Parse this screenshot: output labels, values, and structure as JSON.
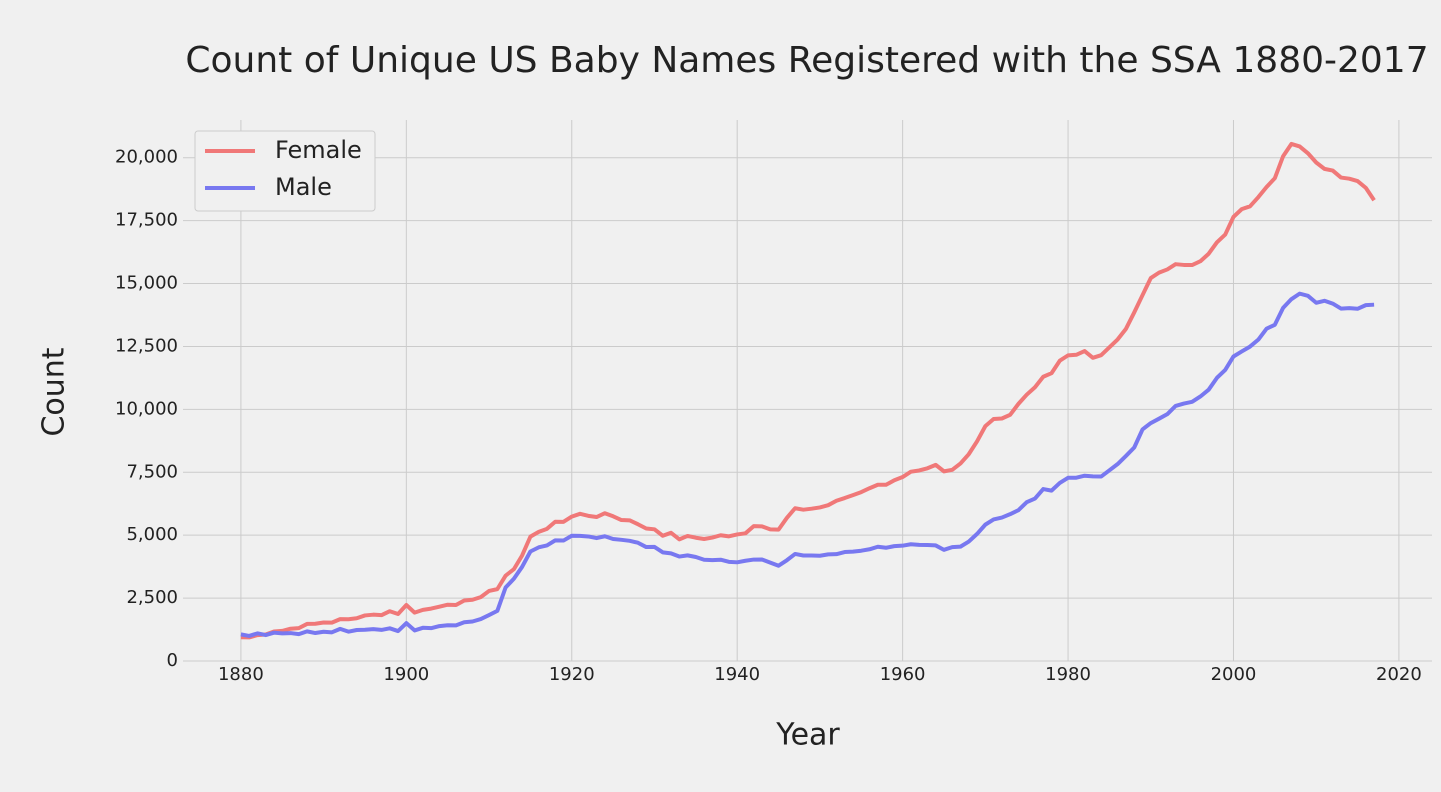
{
  "chart_data": {
    "type": "line",
    "title": "Count of Unique US Baby Names Registered with the SSA 1880-2017",
    "x_label": "Year",
    "y_label": "Count",
    "x": [
      1880,
      1881,
      1882,
      1883,
      1884,
      1885,
      1886,
      1887,
      1888,
      1889,
      1890,
      1891,
      1892,
      1893,
      1894,
      1895,
      1896,
      1897,
      1898,
      1899,
      1900,
      1901,
      1902,
      1903,
      1904,
      1905,
      1906,
      1907,
      1908,
      1909,
      1910,
      1911,
      1912,
      1913,
      1914,
      1915,
      1916,
      1917,
      1918,
      1919,
      1920,
      1921,
      1922,
      1923,
      1924,
      1925,
      1926,
      1927,
      1928,
      1929,
      1930,
      1931,
      1932,
      1933,
      1934,
      1935,
      1936,
      1937,
      1938,
      1939,
      1940,
      1941,
      1942,
      1943,
      1944,
      1945,
      1946,
      1947,
      1948,
      1949,
      1950,
      1951,
      1952,
      1953,
      1954,
      1955,
      1956,
      1957,
      1958,
      1959,
      1960,
      1961,
      1962,
      1963,
      1964,
      1965,
      1966,
      1967,
      1968,
      1969,
      1970,
      1971,
      1972,
      1973,
      1974,
      1975,
      1976,
      1977,
      1978,
      1979,
      1980,
      1981,
      1982,
      1983,
      1984,
      1985,
      1986,
      1987,
      1988,
      1989,
      1990,
      1991,
      1992,
      1993,
      1994,
      1995,
      1996,
      1997,
      1998,
      1999,
      2000,
      2001,
      2002,
      2003,
      2004,
      2005,
      2006,
      2007,
      2008,
      2009,
      2010,
      2011,
      2012,
      2013,
      2014,
      2015,
      2016,
      2017
    ],
    "series": [
      {
        "name": "Female",
        "color": "#f07878",
        "values": [
          942,
          938,
          1028,
          1054,
          1172,
          1197,
          1282,
          1306,
          1474,
          1479,
          1529,
          1525,
          1665,
          1661,
          1698,
          1811,
          1841,
          1822,
          1978,
          1869,
          2225,
          1923,
          2032,
          2082,
          2159,
          2238,
          2226,
          2406,
          2433,
          2540,
          2785,
          2856,
          3392,
          3647,
          4194,
          4943,
          5133,
          5253,
          5534,
          5529,
          5738,
          5850,
          5769,
          5722,
          5873,
          5751,
          5601,
          5590,
          5435,
          5265,
          5233,
          4977,
          5094,
          4834,
          4970,
          4899,
          4849,
          4906,
          4998,
          4954,
          5030,
          5074,
          5360,
          5349,
          5230,
          5221,
          5686,
          6071,
          6013,
          6053,
          6103,
          6192,
          6368,
          6476,
          6592,
          6713,
          6866,
          7003,
          7003,
          7185,
          7311,
          7524,
          7571,
          7659,
          7794,
          7536,
          7598,
          7850,
          8221,
          8731,
          9334,
          9616,
          9637,
          9785,
          10218,
          10584,
          10879,
          11297,
          11437,
          11934,
          12146,
          12169,
          12318,
          12050,
          12154,
          12468,
          12781,
          13201,
          13852,
          14538,
          15217,
          15435,
          15561,
          15770,
          15740,
          15737,
          15887,
          16186,
          16639,
          16946,
          17651,
          17957,
          18069,
          18433,
          18836,
          19188,
          20060,
          20548,
          20449,
          20178,
          19811,
          19558,
          19490,
          19212,
          19167,
          19074,
          18803,
          18309
        ]
      },
      {
        "name": "Male",
        "color": "#7878f0",
        "values": [
          1058,
          997,
          1099,
          1030,
          1125,
          1097,
          1110,
          1067,
          1177,
          1111,
          1161,
          1139,
          1277,
          1166,
          1232,
          1242,
          1266,
          1235,
          1299,
          1189,
          1505,
          1215,
          1320,
          1305,
          1387,
          1419,
          1415,
          1541,
          1570,
          1666,
          1825,
          1991,
          2920,
          3270,
          3743,
          4352,
          4516,
          4591,
          4794,
          4787,
          4978,
          4972,
          4949,
          4884,
          4958,
          4849,
          4816,
          4776,
          4701,
          4528,
          4534,
          4318,
          4277,
          4151,
          4198,
          4133,
          4023,
          4010,
          4025,
          3941,
          3922,
          3984,
          4031,
          4035,
          3911,
          3786,
          4003,
          4254,
          4192,
          4191,
          4184,
          4237,
          4245,
          4330,
          4347,
          4383,
          4440,
          4541,
          4500,
          4565,
          4583,
          4640,
          4614,
          4609,
          4593,
          4418,
          4527,
          4546,
          4747,
          5051,
          5420,
          5625,
          5700,
          5836,
          5994,
          6311,
          6456,
          6834,
          6770,
          7075,
          7280,
          7285,
          7363,
          7337,
          7330,
          7579,
          7828,
          8149,
          8485,
          9202,
          9455,
          9630,
          9810,
          10137,
          10230,
          10299,
          10512,
          10782,
          11253,
          11569,
          12102,
          12301,
          12495,
          12771,
          13207,
          13362,
          14036,
          14380,
          14600,
          14512,
          14237,
          14316,
          14204,
          14006,
          14024,
          13997,
          14143,
          14160
        ]
      }
    ],
    "xlim": [
      1873,
      2024
    ],
    "ylim": [
      0,
      21500
    ],
    "xticks": [
      1880,
      1900,
      1920,
      1940,
      1960,
      1980,
      2000,
      2020
    ],
    "yticks": [
      0,
      {
        "value": 2500,
        "label": "2,500"
      },
      {
        "value": 5000,
        "label": "5,000"
      },
      {
        "value": 7500,
        "label": "7,500"
      },
      {
        "value": 10000,
        "label": "10,000"
      },
      {
        "value": 12500,
        "label": "12,500"
      },
      {
        "value": 15000,
        "label": "15,000"
      },
      {
        "value": 17500,
        "label": "17,500"
      },
      {
        "value": 20000,
        "label": "20,000"
      }
    ],
    "grid": true,
    "legend": "upper-left"
  }
}
